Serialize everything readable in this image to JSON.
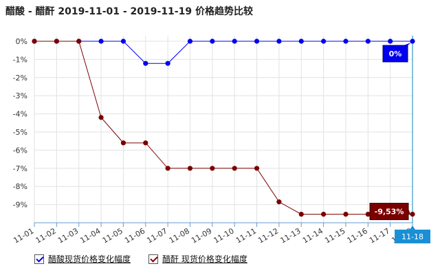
{
  "page_title": "醋酸 - 醋酐 2019-11-01 - 2019-11-19 价格趋势比较",
  "chart_data": {
    "type": "line",
    "title": "醋酸 - 醋酐 2019-11-01 - 2019-11-19 价格趋势比较",
    "x": [
      "11-01",
      "11-02",
      "11-03",
      "11-04",
      "11-05",
      "11-06",
      "11-07",
      "11-08",
      "11-09",
      "11-10",
      "11-11",
      "11-12",
      "11-13",
      "11-14",
      "11-15",
      "11-16",
      "11-17",
      "11-18"
    ],
    "y_ticks": [
      "0%",
      "-1%",
      "-2%",
      "-3%",
      "-4%",
      "-5%",
      "-6%",
      "-7%",
      "-8%",
      "-9%"
    ],
    "ylim": [
      -10,
      0
    ],
    "y_unit": "%",
    "grid": true,
    "legend_placement": "bottom-left",
    "crosshair_label": "11-18",
    "series": [
      {
        "name": "醋酸现货价格变化幅度",
        "color": "#0000ee",
        "values": [
          0,
          0,
          0,
          0,
          0,
          -1.22,
          -1.22,
          0,
          0,
          0,
          0,
          0,
          0,
          0,
          0,
          0,
          0,
          0
        ],
        "end_label": "0%"
      },
      {
        "name": "醋酐 现货价格变化幅度",
        "color": "#7a0000",
        "values": [
          0,
          0,
          0,
          -4.2,
          -5.6,
          -5.6,
          -7.0,
          -7.0,
          -7.0,
          -7.0,
          -7.0,
          -8.85,
          -9.53,
          -9.53,
          -9.53,
          -9.53,
          -9.53,
          -9.53
        ],
        "end_label": "-9,53%"
      }
    ]
  }
}
